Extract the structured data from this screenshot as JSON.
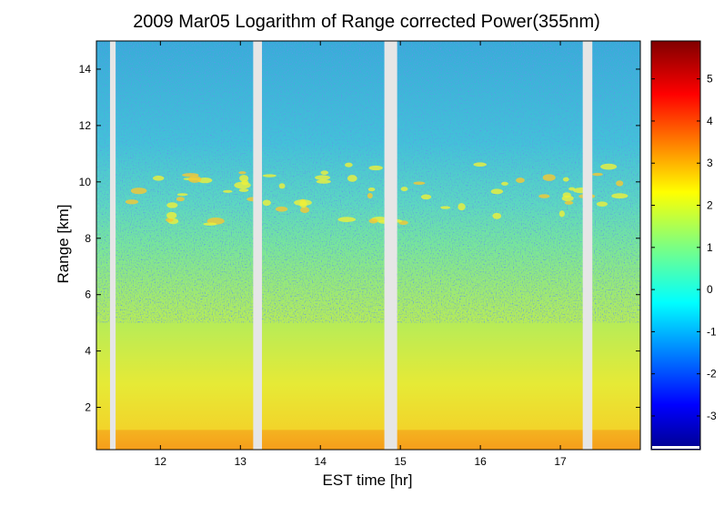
{
  "chart_data": {
    "type": "heatmap",
    "title": "2009 Mar05  Logarithm of Range corrected Power(355nm)",
    "xlabel": "EST time [hr]",
    "ylabel": "Range [km]",
    "xlim": [
      11.2,
      18.0
    ],
    "ylim": [
      0.5,
      15
    ],
    "x_ticks": [
      12,
      13,
      14,
      15,
      16,
      17
    ],
    "y_ticks": [
      2,
      4,
      6,
      8,
      10,
      12,
      14
    ],
    "colorbar": {
      "range": [
        -3.8,
        5.9
      ],
      "ticks": [
        -3,
        -2,
        -1,
        0,
        1,
        2,
        3,
        4,
        5
      ],
      "colormap": "jet"
    },
    "data_gaps_hr": [
      [
        11.37,
        11.44
      ],
      [
        13.16,
        13.27
      ],
      [
        14.8,
        14.96
      ],
      [
        17.28,
        17.4
      ]
    ],
    "surface_layer_top_km": 1.2,
    "cloud_layer_km": [
      8.5,
      10.7
    ],
    "colors": {
      "gap": "#e6e6e6",
      "noise_high": "#2a5fc8",
      "aerosol_low": "#e8e832",
      "surface": "#f59a1a"
    }
  }
}
